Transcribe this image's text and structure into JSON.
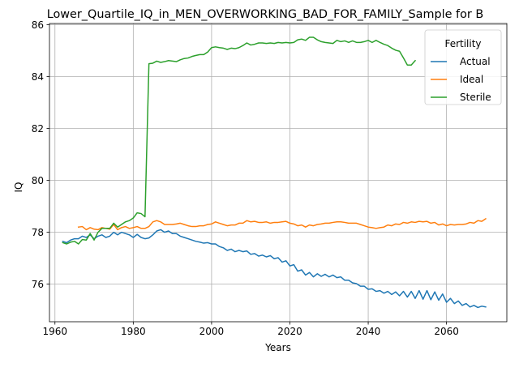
{
  "chart_data": {
    "type": "line",
    "title": "Lower_Quartile_IQ_in_MEN_OVERWORKING_BAD_FOR_FAMILY_Sample for B",
    "xlabel": "Years",
    "ylabel": "IQ",
    "xlim": [
      1958.6,
      2075.4
    ],
    "ylim": [
      74.55,
      86.05
    ],
    "xticks": [
      1960,
      1980,
      2000,
      2020,
      2040,
      2060
    ],
    "yticks": [
      76,
      78,
      80,
      82,
      84,
      86
    ],
    "grid": true,
    "legend": {
      "title": "Fertility",
      "placement": "top-right"
    },
    "series": [
      {
        "name": "Actual",
        "color": "#1f77b4",
        "points": [
          [
            1962,
            77.65
          ],
          [
            1963,
            77.6
          ],
          [
            1964,
            77.7
          ],
          [
            1965,
            77.75
          ],
          [
            1966,
            77.75
          ],
          [
            1967,
            77.85
          ],
          [
            1968,
            77.8
          ],
          [
            1969,
            77.9
          ],
          [
            1970,
            77.75
          ],
          [
            1971,
            77.85
          ],
          [
            1972,
            77.9
          ],
          [
            1973,
            77.8
          ],
          [
            1974,
            77.85
          ],
          [
            1975,
            78.0
          ],
          [
            1976,
            77.9
          ],
          [
            1977,
            78.0
          ],
          [
            1978,
            77.95
          ],
          [
            1979,
            77.9
          ],
          [
            1980,
            77.8
          ],
          [
            1981,
            77.92
          ],
          [
            1982,
            77.8
          ],
          [
            1983,
            77.75
          ],
          [
            1984,
            77.78
          ],
          [
            1985,
            77.9
          ],
          [
            1986,
            78.05
          ],
          [
            1987,
            78.1
          ],
          [
            1988,
            78.0
          ],
          [
            1989,
            78.05
          ],
          [
            1990,
            77.95
          ],
          [
            1991,
            77.95
          ],
          [
            1992,
            77.85
          ],
          [
            1993,
            77.8
          ],
          [
            1994,
            77.75
          ],
          [
            1995,
            77.7
          ],
          [
            1996,
            77.65
          ],
          [
            1997,
            77.62
          ],
          [
            1998,
            77.58
          ],
          [
            1999,
            77.6
          ],
          [
            2000,
            77.55
          ],
          [
            2001,
            77.55
          ],
          [
            2002,
            77.45
          ],
          [
            2003,
            77.4
          ],
          [
            2004,
            77.3
          ],
          [
            2005,
            77.35
          ],
          [
            2006,
            77.25
          ],
          [
            2007,
            77.3
          ],
          [
            2008,
            77.25
          ],
          [
            2009,
            77.28
          ],
          [
            2010,
            77.15
          ],
          [
            2011,
            77.18
          ],
          [
            2012,
            77.08
          ],
          [
            2013,
            77.12
          ],
          [
            2014,
            77.05
          ],
          [
            2015,
            77.1
          ],
          [
            2016,
            76.98
          ],
          [
            2017,
            77.02
          ],
          [
            2018,
            76.85
          ],
          [
            2019,
            76.9
          ],
          [
            2020,
            76.7
          ],
          [
            2021,
            76.75
          ],
          [
            2022,
            76.5
          ],
          [
            2023,
            76.55
          ],
          [
            2024,
            76.35
          ],
          [
            2025,
            76.45
          ],
          [
            2026,
            76.28
          ],
          [
            2027,
            76.4
          ],
          [
            2028,
            76.3
          ],
          [
            2029,
            76.38
          ],
          [
            2030,
            76.28
          ],
          [
            2031,
            76.35
          ],
          [
            2032,
            76.25
          ],
          [
            2033,
            76.28
          ],
          [
            2034,
            76.15
          ],
          [
            2035,
            76.15
          ],
          [
            2036,
            76.05
          ],
          [
            2037,
            76.02
          ],
          [
            2038,
            75.92
          ],
          [
            2039,
            75.92
          ],
          [
            2040,
            75.8
          ],
          [
            2041,
            75.82
          ],
          [
            2042,
            75.72
          ],
          [
            2043,
            75.75
          ],
          [
            2044,
            75.65
          ],
          [
            2045,
            75.72
          ],
          [
            2046,
            75.6
          ],
          [
            2047,
            75.7
          ],
          [
            2048,
            75.55
          ],
          [
            2049,
            75.72
          ],
          [
            2050,
            75.5
          ],
          [
            2051,
            75.72
          ],
          [
            2052,
            75.45
          ],
          [
            2053,
            75.75
          ],
          [
            2054,
            75.42
          ],
          [
            2055,
            75.75
          ],
          [
            2056,
            75.4
          ],
          [
            2057,
            75.7
          ],
          [
            2058,
            75.38
          ],
          [
            2059,
            75.62
          ],
          [
            2060,
            75.3
          ],
          [
            2061,
            75.45
          ],
          [
            2062,
            75.25
          ],
          [
            2063,
            75.35
          ],
          [
            2064,
            75.18
          ],
          [
            2065,
            75.25
          ],
          [
            2066,
            75.12
          ],
          [
            2067,
            75.18
          ],
          [
            2068,
            75.1
          ],
          [
            2069,
            75.15
          ],
          [
            2070,
            75.12
          ]
        ]
      },
      {
        "name": "Ideal",
        "color": "#ff7f0e",
        "points": [
          [
            1966,
            78.2
          ],
          [
            1967,
            78.22
          ],
          [
            1968,
            78.1
          ],
          [
            1969,
            78.18
          ],
          [
            1970,
            78.12
          ],
          [
            1971,
            78.1
          ],
          [
            1972,
            78.18
          ],
          [
            1973,
            78.15
          ],
          [
            1974,
            78.12
          ],
          [
            1975,
            78.3
          ],
          [
            1976,
            78.1
          ],
          [
            1977,
            78.18
          ],
          [
            1978,
            78.22
          ],
          [
            1979,
            78.15
          ],
          [
            1980,
            78.18
          ],
          [
            1981,
            78.22
          ],
          [
            1982,
            78.15
          ],
          [
            1983,
            78.15
          ],
          [
            1984,
            78.22
          ],
          [
            1985,
            78.4
          ],
          [
            1986,
            78.45
          ],
          [
            1987,
            78.4
          ],
          [
            1988,
            78.3
          ],
          [
            1989,
            78.3
          ],
          [
            1990,
            78.3
          ],
          [
            1991,
            78.32
          ],
          [
            1992,
            78.35
          ],
          [
            1993,
            78.3
          ],
          [
            1994,
            78.25
          ],
          [
            1995,
            78.22
          ],
          [
            1996,
            78.22
          ],
          [
            1997,
            78.25
          ],
          [
            1998,
            78.25
          ],
          [
            1999,
            78.3
          ],
          [
            2000,
            78.32
          ],
          [
            2001,
            78.4
          ],
          [
            2002,
            78.35
          ],
          [
            2003,
            78.3
          ],
          [
            2004,
            78.25
          ],
          [
            2005,
            78.28
          ],
          [
            2006,
            78.28
          ],
          [
            2007,
            78.35
          ],
          [
            2008,
            78.35
          ],
          [
            2009,
            78.45
          ],
          [
            2010,
            78.4
          ],
          [
            2011,
            78.42
          ],
          [
            2012,
            78.38
          ],
          [
            2013,
            78.38
          ],
          [
            2014,
            78.4
          ],
          [
            2015,
            78.35
          ],
          [
            2016,
            78.38
          ],
          [
            2017,
            78.38
          ],
          [
            2018,
            78.4
          ],
          [
            2019,
            78.42
          ],
          [
            2020,
            78.35
          ],
          [
            2021,
            78.32
          ],
          [
            2022,
            78.25
          ],
          [
            2023,
            78.28
          ],
          [
            2024,
            78.2
          ],
          [
            2025,
            78.28
          ],
          [
            2026,
            78.25
          ],
          [
            2027,
            78.3
          ],
          [
            2028,
            78.32
          ],
          [
            2029,
            78.35
          ],
          [
            2030,
            78.35
          ],
          [
            2031,
            78.38
          ],
          [
            2032,
            78.4
          ],
          [
            2033,
            78.4
          ],
          [
            2034,
            78.38
          ],
          [
            2035,
            78.35
          ],
          [
            2036,
            78.35
          ],
          [
            2037,
            78.35
          ],
          [
            2038,
            78.3
          ],
          [
            2039,
            78.25
          ],
          [
            2040,
            78.2
          ],
          [
            2041,
            78.18
          ],
          [
            2042,
            78.15
          ],
          [
            2043,
            78.18
          ],
          [
            2044,
            78.2
          ],
          [
            2045,
            78.28
          ],
          [
            2046,
            78.25
          ],
          [
            2047,
            78.32
          ],
          [
            2048,
            78.3
          ],
          [
            2049,
            78.38
          ],
          [
            2050,
            78.35
          ],
          [
            2051,
            78.4
          ],
          [
            2052,
            78.38
          ],
          [
            2053,
            78.42
          ],
          [
            2054,
            78.4
          ],
          [
            2055,
            78.42
          ],
          [
            2056,
            78.35
          ],
          [
            2057,
            78.38
          ],
          [
            2058,
            78.28
          ],
          [
            2059,
            78.32
          ],
          [
            2060,
            78.25
          ],
          [
            2061,
            78.3
          ],
          [
            2062,
            78.28
          ],
          [
            2063,
            78.3
          ],
          [
            2064,
            78.3
          ],
          [
            2065,
            78.32
          ],
          [
            2066,
            78.38
          ],
          [
            2067,
            78.35
          ],
          [
            2068,
            78.45
          ],
          [
            2069,
            78.42
          ],
          [
            2070,
            78.52
          ]
        ]
      },
      {
        "name": "Sterile",
        "color": "#2ca02c",
        "points": [
          [
            1962,
            77.6
          ],
          [
            1963,
            77.55
          ],
          [
            1964,
            77.62
          ],
          [
            1965,
            77.65
          ],
          [
            1966,
            77.55
          ],
          [
            1967,
            77.72
          ],
          [
            1968,
            77.7
          ],
          [
            1969,
            77.95
          ],
          [
            1970,
            77.7
          ],
          [
            1971,
            78.0
          ],
          [
            1972,
            78.15
          ],
          [
            1973,
            78.15
          ],
          [
            1974,
            78.15
          ],
          [
            1975,
            78.35
          ],
          [
            1976,
            78.2
          ],
          [
            1977,
            78.3
          ],
          [
            1978,
            78.4
          ],
          [
            1979,
            78.45
          ],
          [
            1980,
            78.55
          ],
          [
            1981,
            78.75
          ],
          [
            1982,
            78.72
          ],
          [
            1983,
            78.6
          ],
          [
            1984,
            84.5
          ],
          [
            1985,
            84.52
          ],
          [
            1986,
            84.6
          ],
          [
            1987,
            84.55
          ],
          [
            1988,
            84.58
          ],
          [
            1989,
            84.62
          ],
          [
            1990,
            84.6
          ],
          [
            1991,
            84.58
          ],
          [
            1992,
            84.65
          ],
          [
            1993,
            84.7
          ],
          [
            1994,
            84.72
          ],
          [
            1995,
            84.78
          ],
          [
            1996,
            84.82
          ],
          [
            1997,
            84.85
          ],
          [
            1998,
            84.85
          ],
          [
            1999,
            84.95
          ],
          [
            2000,
            85.12
          ],
          [
            2001,
            85.15
          ],
          [
            2002,
            85.12
          ],
          [
            2003,
            85.1
          ],
          [
            2004,
            85.05
          ],
          [
            2005,
            85.1
          ],
          [
            2006,
            85.08
          ],
          [
            2007,
            85.12
          ],
          [
            2008,
            85.2
          ],
          [
            2009,
            85.3
          ],
          [
            2010,
            85.22
          ],
          [
            2011,
            85.25
          ],
          [
            2012,
            85.3
          ],
          [
            2013,
            85.3
          ],
          [
            2014,
            85.28
          ],
          [
            2015,
            85.3
          ],
          [
            2016,
            85.28
          ],
          [
            2017,
            85.32
          ],
          [
            2018,
            85.3
          ],
          [
            2019,
            85.32
          ],
          [
            2020,
            85.3
          ],
          [
            2021,
            85.32
          ],
          [
            2022,
            85.42
          ],
          [
            2023,
            85.45
          ],
          [
            2024,
            85.4
          ],
          [
            2025,
            85.52
          ],
          [
            2026,
            85.52
          ],
          [
            2027,
            85.42
          ],
          [
            2028,
            85.35
          ],
          [
            2029,
            85.32
          ],
          [
            2030,
            85.3
          ],
          [
            2031,
            85.28
          ],
          [
            2032,
            85.4
          ],
          [
            2033,
            85.35
          ],
          [
            2034,
            85.38
          ],
          [
            2035,
            85.32
          ],
          [
            2036,
            85.38
          ],
          [
            2037,
            85.32
          ],
          [
            2038,
            85.32
          ],
          [
            2039,
            85.35
          ],
          [
            2040,
            85.4
          ],
          [
            2041,
            85.32
          ],
          [
            2042,
            85.4
          ],
          [
            2043,
            85.32
          ],
          [
            2044,
            85.25
          ],
          [
            2045,
            85.2
          ],
          [
            2046,
            85.1
          ],
          [
            2047,
            85.02
          ],
          [
            2048,
            84.98
          ],
          [
            2049,
            84.72
          ],
          [
            2050,
            84.45
          ],
          [
            2051,
            84.45
          ],
          [
            2052,
            84.62
          ]
        ]
      }
    ]
  }
}
